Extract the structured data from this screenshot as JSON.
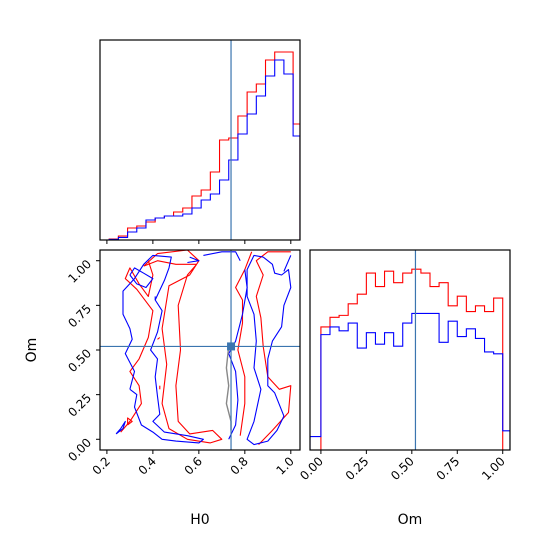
{
  "chart_data": {
    "type": "corner",
    "parameters": [
      "H0",
      "Om"
    ],
    "truths": {
      "H0": 0.74,
      "Om": 0.52
    },
    "colors": {
      "red": "#ff0000",
      "blue": "#0000ff",
      "truth": "#3b75af",
      "truth_marker": "#3b75af"
    },
    "axes": {
      "h0_hist": {
        "xlim": [
          0.17,
          1.04
        ],
        "xticks": [
          0.2,
          0.4,
          0.6,
          0.8,
          1.0
        ],
        "xtick_labels": []
      },
      "om_hist": {
        "xlim": [
          -0.06,
          1.04
        ],
        "xticks": [
          0.0,
          0.25,
          0.5,
          0.75,
          1.0
        ],
        "xtick_labels": [
          "0.00",
          "0.25",
          "0.50",
          "0.75",
          "1.00"
        ],
        "xlabel": "Om"
      },
      "joint": {
        "xlim": [
          0.17,
          1.04
        ],
        "ylim": [
          -0.06,
          1.06
        ],
        "xticks": [
          0.2,
          0.4,
          0.6,
          0.8,
          1.0
        ],
        "xtick_labels": [
          "0.2",
          "0.4",
          "0.6",
          "0.8",
          "1.0"
        ],
        "yticks": [
          0.0,
          0.25,
          0.5,
          0.75,
          1.0
        ],
        "ytick_labels": [
          "0.00",
          "0.25",
          "0.50",
          "0.75",
          "1.00"
        ],
        "xlabel": "H0",
        "ylabel": "Om"
      }
    },
    "h0_hist": {
      "bin_edges": [
        0.17,
        0.21,
        0.25,
        0.29,
        0.33,
        0.37,
        0.41,
        0.45,
        0.49,
        0.53,
        0.57,
        0.61,
        0.65,
        0.69,
        0.73,
        0.77,
        0.81,
        0.85,
        0.89,
        0.93,
        0.97,
        1.01,
        1.04
      ],
      "red": [
        0.0,
        0.005,
        0.02,
        0.06,
        0.07,
        0.09,
        0.11,
        0.12,
        0.14,
        0.16,
        0.22,
        0.25,
        0.34,
        0.5,
        0.51,
        0.62,
        0.74,
        0.78,
        0.9,
        0.94,
        0.94,
        0.58
      ],
      "blue": [
        0.0,
        0.003,
        0.013,
        0.04,
        0.06,
        0.1,
        0.11,
        0.12,
        0.12,
        0.13,
        0.16,
        0.2,
        0.23,
        0.3,
        0.4,
        0.53,
        0.63,
        0.72,
        0.82,
        0.9,
        0.83,
        0.52
      ]
    },
    "om_hist": {
      "bin_edges": [
        -0.06,
        0.0,
        0.05,
        0.1,
        0.15,
        0.2,
        0.25,
        0.3,
        0.35,
        0.4,
        0.45,
        0.5,
        0.55,
        0.6,
        0.65,
        0.7,
        0.75,
        0.8,
        0.85,
        0.9,
        0.95,
        1.0,
        1.04
      ],
      "red": [
        0.0,
        0.64,
        0.69,
        0.7,
        0.76,
        0.81,
        0.92,
        0.85,
        0.93,
        0.87,
        0.92,
        0.94,
        0.92,
        0.85,
        0.87,
        0.75,
        0.8,
        0.72,
        0.75,
        0.72,
        0.79,
        0.0
      ],
      "blue": [
        0.07,
        0.6,
        0.64,
        0.62,
        0.66,
        0.53,
        0.61,
        0.55,
        0.61,
        0.54,
        0.66,
        0.71,
        0.71,
        0.71,
        0.56,
        0.67,
        0.59,
        0.63,
        0.58,
        0.51,
        0.5,
        0.1
      ]
    },
    "contours": {
      "red": [
        [
          [
            0.36,
            0.97
          ],
          [
            0.42,
            1.04
          ],
          [
            0.55,
            1.06
          ],
          [
            0.6,
            1.0
          ],
          [
            0.56,
            0.92
          ],
          [
            0.47,
            0.86
          ],
          [
            0.44,
            0.62
          ],
          [
            0.46,
            0.42
          ],
          [
            0.44,
            0.2
          ],
          [
            0.47,
            0.06
          ],
          [
            0.55,
            0.0
          ],
          [
            0.65,
            -0.02
          ],
          [
            0.7,
            0.0
          ],
          [
            0.66,
            0.05
          ],
          [
            0.56,
            0.03
          ],
          [
            0.51,
            0.1
          ],
          [
            0.5,
            0.3
          ],
          [
            0.52,
            0.5
          ],
          [
            0.51,
            0.75
          ],
          [
            0.55,
            0.92
          ],
          [
            0.59,
            0.98
          ],
          [
            0.5,
            0.98
          ],
          [
            0.42,
            1.0
          ],
          [
            0.36,
            0.97
          ]
        ],
        [
          [
            0.26,
            0.04
          ],
          [
            0.3,
            0.1
          ],
          [
            0.35,
            0.2
          ],
          [
            0.34,
            0.3
          ],
          [
            0.3,
            0.38
          ],
          [
            0.34,
            0.45
          ],
          [
            0.38,
            0.57
          ],
          [
            0.4,
            0.72
          ],
          [
            0.33,
            0.84
          ],
          [
            0.28,
            0.9
          ],
          [
            0.3,
            0.96
          ],
          [
            0.34,
            0.87
          ],
          [
            0.38,
            0.8
          ],
          [
            0.4,
            0.92
          ],
          [
            0.38,
            1.0
          ]
        ],
        [
          [
            0.86,
            -0.03
          ],
          [
            0.92,
            0.05
          ],
          [
            0.99,
            0.15
          ],
          [
            1.0,
            0.3
          ],
          [
            0.95,
            0.28
          ],
          [
            0.9,
            0.35
          ],
          [
            0.88,
            0.52
          ],
          [
            0.87,
            0.68
          ],
          [
            0.85,
            0.8
          ],
          [
            0.88,
            0.92
          ],
          [
            0.85,
            1.0
          ],
          [
            0.9,
            1.05
          ],
          [
            1.0,
            1.05
          ]
        ],
        [
          [
            0.78,
            0.02
          ],
          [
            0.8,
            0.2
          ],
          [
            0.8,
            0.35
          ],
          [
            0.77,
            0.5
          ],
          [
            0.79,
            0.65
          ],
          [
            0.79,
            0.78
          ],
          [
            0.76,
            0.85
          ],
          [
            0.8,
            0.95
          ],
          [
            0.83,
            1.05
          ]
        ],
        [
          [
            0.43,
            0.57
          ],
          [
            0.42,
            0.56
          ]
        ],
        [
          [
            0.43,
            0.3
          ],
          [
            0.43,
            0.28
          ]
        ],
        [
          [
            0.29,
            0.08
          ],
          [
            0.31,
            0.1
          ],
          [
            0.29,
            0.12
          ],
          [
            0.29,
            0.08
          ]
        ]
      ],
      "blue": [
        [
          [
            0.3,
            0.92
          ],
          [
            0.32,
            0.96
          ],
          [
            0.36,
            0.93
          ],
          [
            0.4,
            0.9
          ],
          [
            0.37,
            0.85
          ],
          [
            0.33,
            0.87
          ],
          [
            0.3,
            0.92
          ]
        ],
        [
          [
            0.3,
            0.28
          ],
          [
            0.32,
            0.38
          ],
          [
            0.28,
            0.48
          ],
          [
            0.31,
            0.56
          ],
          [
            0.3,
            0.62
          ],
          [
            0.27,
            0.7
          ],
          [
            0.27,
            0.83
          ],
          [
            0.32,
            0.9
          ],
          [
            0.36,
            0.98
          ],
          [
            0.4,
            1.03
          ],
          [
            0.48,
            1.02
          ],
          [
            0.47,
            0.96
          ],
          [
            0.45,
            0.89
          ],
          [
            0.41,
            0.78
          ],
          [
            0.44,
            0.72
          ],
          [
            0.42,
            0.6
          ],
          [
            0.39,
            0.5
          ],
          [
            0.42,
            0.45
          ],
          [
            0.41,
            0.35
          ],
          [
            0.42,
            0.24
          ],
          [
            0.43,
            0.14
          ],
          [
            0.4,
            0.1
          ],
          [
            0.45,
            0.04
          ],
          [
            0.55,
            0.02
          ],
          [
            0.62,
            0.0
          ],
          [
            0.6,
            -0.02
          ],
          [
            0.5,
            -0.01
          ],
          [
            0.44,
            0.0
          ],
          [
            0.4,
            0.04
          ],
          [
            0.35,
            0.08
          ],
          [
            0.32,
            0.18
          ],
          [
            0.33,
            0.25
          ],
          [
            0.3,
            0.28
          ]
        ],
        [
          [
            0.62,
            1.03
          ],
          [
            0.7,
            1.05
          ],
          [
            0.76,
            1.05
          ],
          [
            0.78,
            1.0
          ]
        ],
        [
          [
            0.56,
            1.02
          ],
          [
            0.6,
            1.0
          ],
          [
            0.55,
            0.99
          ]
        ],
        [
          [
            0.24,
            0.03
          ],
          [
            0.27,
            0.06
          ],
          [
            0.28,
            0.1
          ],
          [
            0.26,
            0.06
          ],
          [
            0.24,
            0.03
          ]
        ],
        [
          [
            0.41,
            0.8
          ],
          [
            0.41,
            0.78
          ]
        ],
        [
          [
            0.88,
            1.02
          ],
          [
            0.92,
            0.98
          ],
          [
            0.93,
            0.93
          ],
          [
            0.96,
            0.92
          ],
          [
            0.99,
            0.95
          ],
          [
            1.0,
            0.85
          ],
          [
            0.97,
            0.75
          ],
          [
            0.96,
            0.63
          ],
          [
            0.92,
            0.55
          ],
          [
            0.9,
            0.45
          ],
          [
            0.9,
            0.3
          ],
          [
            0.93,
            0.26
          ],
          [
            0.97,
            0.13
          ],
          [
            0.94,
            0.05
          ],
          [
            0.9,
            -0.01
          ],
          [
            0.84,
            -0.03
          ],
          [
            0.81,
            0.0
          ],
          [
            0.84,
            0.1
          ],
          [
            0.87,
            0.28
          ],
          [
            0.84,
            0.4
          ],
          [
            0.85,
            0.55
          ],
          [
            0.84,
            0.7
          ],
          [
            0.81,
            0.8
          ],
          [
            0.81,
            0.95
          ],
          [
            0.84,
            1.03
          ],
          [
            0.88,
            1.02
          ]
        ],
        [
          [
            0.73,
            0.0
          ],
          [
            0.76,
            0.08
          ],
          [
            0.77,
            0.22
          ],
          [
            0.76,
            0.38
          ],
          [
            0.73,
            0.48
          ],
          [
            0.76,
            0.55
          ],
          [
            0.79,
            0.7
          ],
          [
            0.81,
            0.85
          ],
          [
            0.8,
            0.95
          ]
        ],
        [
          [
            0.97,
            0.94
          ],
          [
            0.99,
            1.0
          ],
          [
            1.0,
            1.03
          ]
        ]
      ]
    },
    "gray_line": [
      [
        0.74,
        0.05
      ],
      [
        0.74,
        0.1
      ],
      [
        0.72,
        0.2
      ],
      [
        0.73,
        0.3
      ],
      [
        0.72,
        0.4
      ],
      [
        0.73,
        0.52
      ]
    ]
  }
}
